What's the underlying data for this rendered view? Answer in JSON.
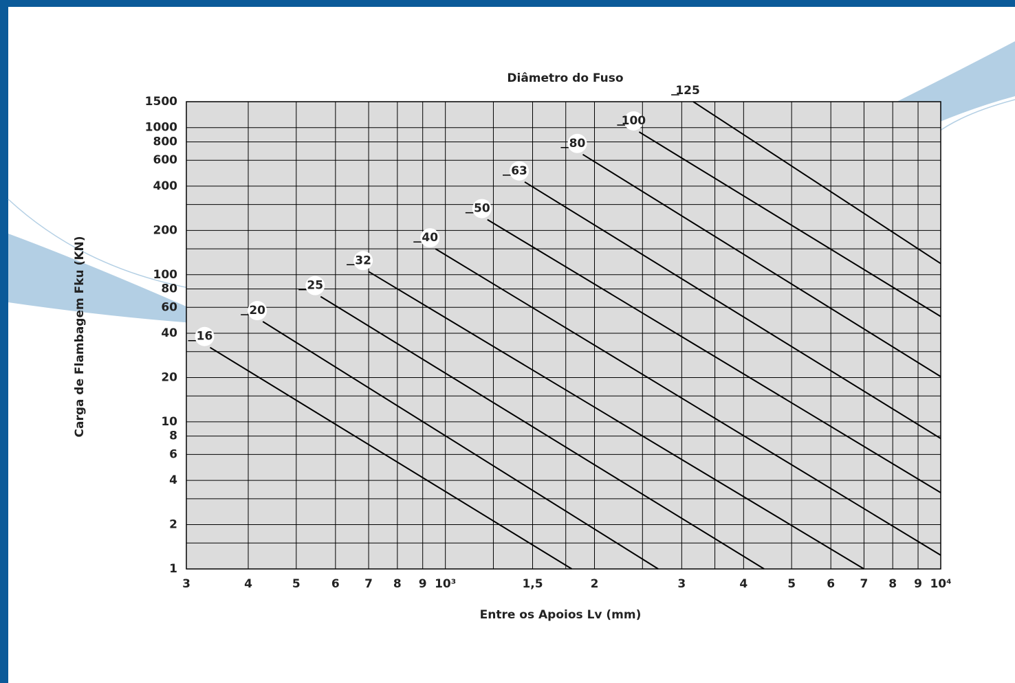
{
  "chart_data": {
    "type": "line",
    "legend_title": "Diâmetro do Fuso",
    "x_label": "Entre os Apoios Lv (mm)",
    "y_label": "Carga de Flambagem Fku (KN)",
    "xlog": true,
    "ylog": true,
    "grid": true,
    "xlim": [
      300,
      10000
    ],
    "ylim": [
      1,
      1500
    ],
    "xticks": [
      {
        "value": 300,
        "label": "3"
      },
      {
        "value": 400,
        "label": "4"
      },
      {
        "value": 500,
        "label": "5"
      },
      {
        "value": 600,
        "label": "6"
      },
      {
        "value": 700,
        "label": "7"
      },
      {
        "value": 800,
        "label": "8"
      },
      {
        "value": 900,
        "label": "9"
      },
      {
        "value": 1000,
        "label": "10³"
      },
      {
        "value": 1500,
        "label": "1,5"
      },
      {
        "value": 2000,
        "label": "2"
      },
      {
        "value": 3000,
        "label": "3"
      },
      {
        "value": 4000,
        "label": "4"
      },
      {
        "value": 5000,
        "label": "5"
      },
      {
        "value": 6000,
        "label": "6"
      },
      {
        "value": 7000,
        "label": "7"
      },
      {
        "value": 8000,
        "label": "8"
      },
      {
        "value": 9000,
        "label": "9"
      },
      {
        "value": 10000,
        "label": "10⁴"
      }
    ],
    "x_minor_grid": [
      1250,
      1750,
      2500,
      3500
    ],
    "yticks": [
      1,
      2,
      4,
      6,
      8,
      10,
      20,
      40,
      60,
      80,
      100,
      200,
      400,
      600,
      800,
      1000,
      1500
    ],
    "y_minor_grid": [
      1.5,
      3,
      15,
      30,
      150,
      300
    ],
    "series": [
      {
        "name": "16",
        "color": "#000000",
        "x": [
          335,
          1800
        ],
        "values": [
          32,
          1
        ]
      },
      {
        "name": "20",
        "color": "#000000",
        "x": [
          428,
          2690
        ],
        "values": [
          48,
          1
        ]
      },
      {
        "name": "25",
        "color": "#000000",
        "x": [
          560,
          4400
        ],
        "values": [
          71,
          1
        ]
      },
      {
        "name": "32",
        "color": "#000000",
        "x": [
          700,
          7000
        ],
        "values": [
          105,
          1
        ]
      },
      {
        "name": "40",
        "color": "#000000",
        "x": [
          955,
          10000
        ],
        "values": [
          150,
          1.24
        ]
      },
      {
        "name": "50",
        "color": "#000000",
        "x": [
          1216,
          10000
        ],
        "values": [
          237,
          3.3
        ]
      },
      {
        "name": "63",
        "color": "#000000",
        "x": [
          1446,
          10000
        ],
        "values": [
          427,
          7.7
        ]
      },
      {
        "name": "80",
        "color": "#000000",
        "x": [
          1894,
          10000
        ],
        "values": [
          657,
          20.3
        ]
      },
      {
        "name": "100",
        "color": "#000000",
        "x": [
          2461,
          10000
        ],
        "values": [
          935,
          52
        ]
      },
      {
        "name": "125",
        "color": "#000000",
        "x": [
          3165,
          10000
        ],
        "values": [
          1500,
          119
        ]
      }
    ]
  }
}
